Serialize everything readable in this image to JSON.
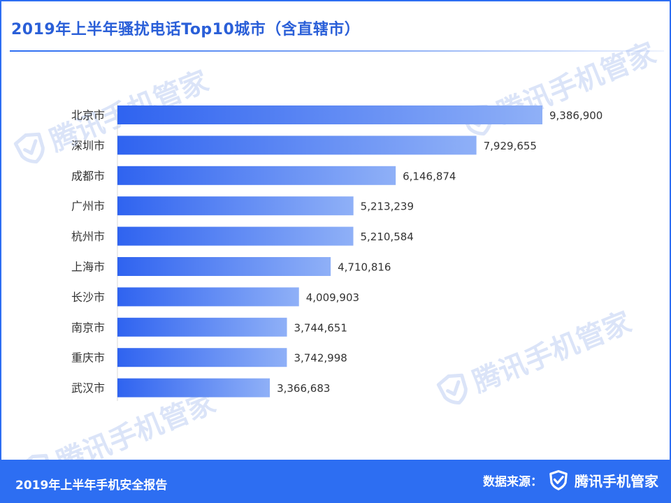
{
  "title": "2019年上半年骚扰电话Top10城市（含直辖市）",
  "watermark_text": "腾讯手机管家",
  "footer": {
    "report": "2019年上半年手机安全报告",
    "source_label": "数据来源：",
    "brand": "腾讯手机管家",
    "brand_icon": "shield-check-icon"
  },
  "colors": {
    "accent": "#2d6ef2",
    "bar_start": "#2f63f0",
    "bar_end": "#8fb0f7",
    "watermark": "#cfdcf6"
  },
  "chart_data": {
    "type": "bar",
    "orientation": "horizontal",
    "categories": [
      "北京市",
      "深圳市",
      "成都市",
      "广州市",
      "杭州市",
      "上海市",
      "长沙市",
      "南京市",
      "重庆市",
      "武汉市"
    ],
    "values": [
      9386900,
      7929655,
      6146874,
      5213239,
      5210584,
      4710816,
      4009903,
      3744651,
      3742998,
      3366683
    ],
    "data_labels": [
      "9,386,900",
      "7,929,655",
      "6,146,874",
      "5,213,239",
      "5,210,584",
      "4,710,816",
      "4,009,903",
      "3,744,651",
      "3,742,998",
      "3,366,683"
    ],
    "xlim": [
      0,
      9386900
    ],
    "grid": false,
    "legend": "none"
  }
}
